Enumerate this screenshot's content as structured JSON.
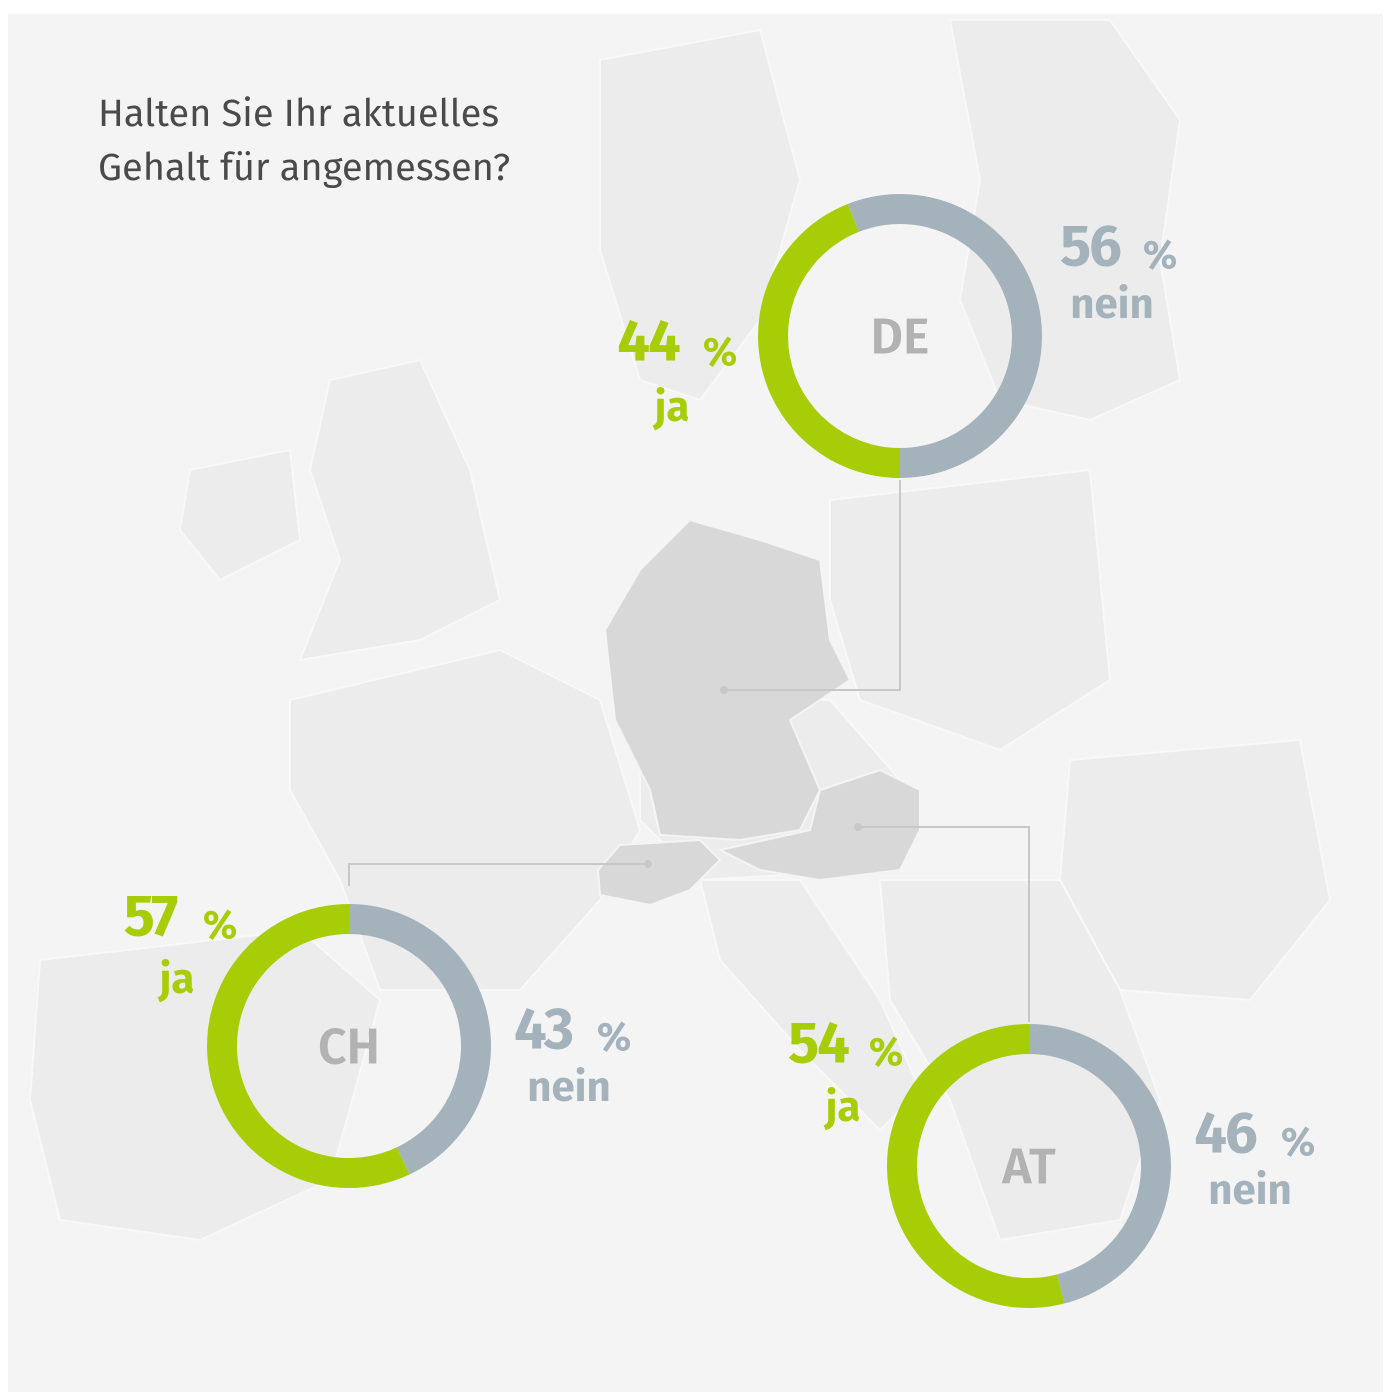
{
  "title": [
    "Halten Sie Ihr aktuelles",
    "Gehalt für angemessen?"
  ],
  "chart_data": [
    {
      "type": "donut",
      "center_label": "DE",
      "categories": [
        "ja",
        "nein"
      ],
      "values": [
        44,
        56
      ],
      "colors": [
        "#a7cd06",
        "#a4b2bc"
      ],
      "value_suffix": "%"
    },
    {
      "type": "donut",
      "center_label": "CH",
      "categories": [
        "ja",
        "nein"
      ],
      "values": [
        57,
        43
      ],
      "colors": [
        "#a7cd06",
        "#a4b2bc"
      ],
      "value_suffix": "%"
    },
    {
      "type": "donut",
      "center_label": "AT",
      "categories": [
        "ja",
        "nein"
      ],
      "values": [
        54,
        46
      ],
      "colors": [
        "#a7cd06",
        "#a4b2bc"
      ],
      "value_suffix": "%"
    }
  ]
}
